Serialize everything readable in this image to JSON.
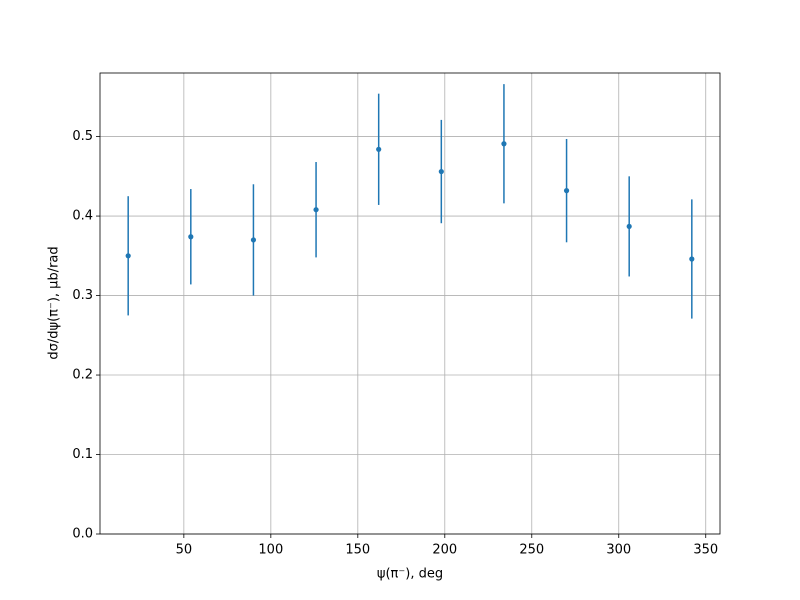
{
  "chart_data": {
    "type": "errorbar",
    "x_label": "ψ(π⁻), deg",
    "y_label": "dσ/dψ(π⁻), μb/rad",
    "x": [
      18,
      54,
      90,
      126,
      162,
      198,
      234,
      270,
      306,
      342
    ],
    "values": [
      0.35,
      0.374,
      0.37,
      0.408,
      0.484,
      0.456,
      0.491,
      0.432,
      0.387,
      0.346
    ],
    "errors": [
      0.075,
      0.06,
      0.07,
      0.06,
      0.07,
      0.065,
      0.075,
      0.065,
      0.063,
      0.075
    ],
    "color": "#1f77b4",
    "xlim": [
      1.8,
      358.2
    ],
    "ylim": [
      0,
      0.58
    ],
    "xticks": [
      50,
      100,
      150,
      200,
      250,
      300,
      350
    ],
    "yticks": [
      {
        "value": 0,
        "label": "0.0"
      },
      0.1,
      0.2,
      0.3,
      0.4,
      0.5
    ],
    "grid": true
  }
}
